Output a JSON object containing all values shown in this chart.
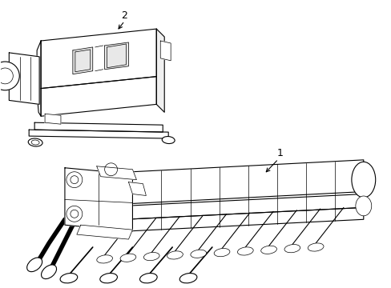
{
  "bg_color": "#ffffff",
  "line_color": "#000000",
  "lw": 0.8,
  "tlw": 0.5,
  "fig_width": 4.89,
  "fig_height": 3.6,
  "dpi": 100,
  "label1": "1",
  "label2": "2"
}
